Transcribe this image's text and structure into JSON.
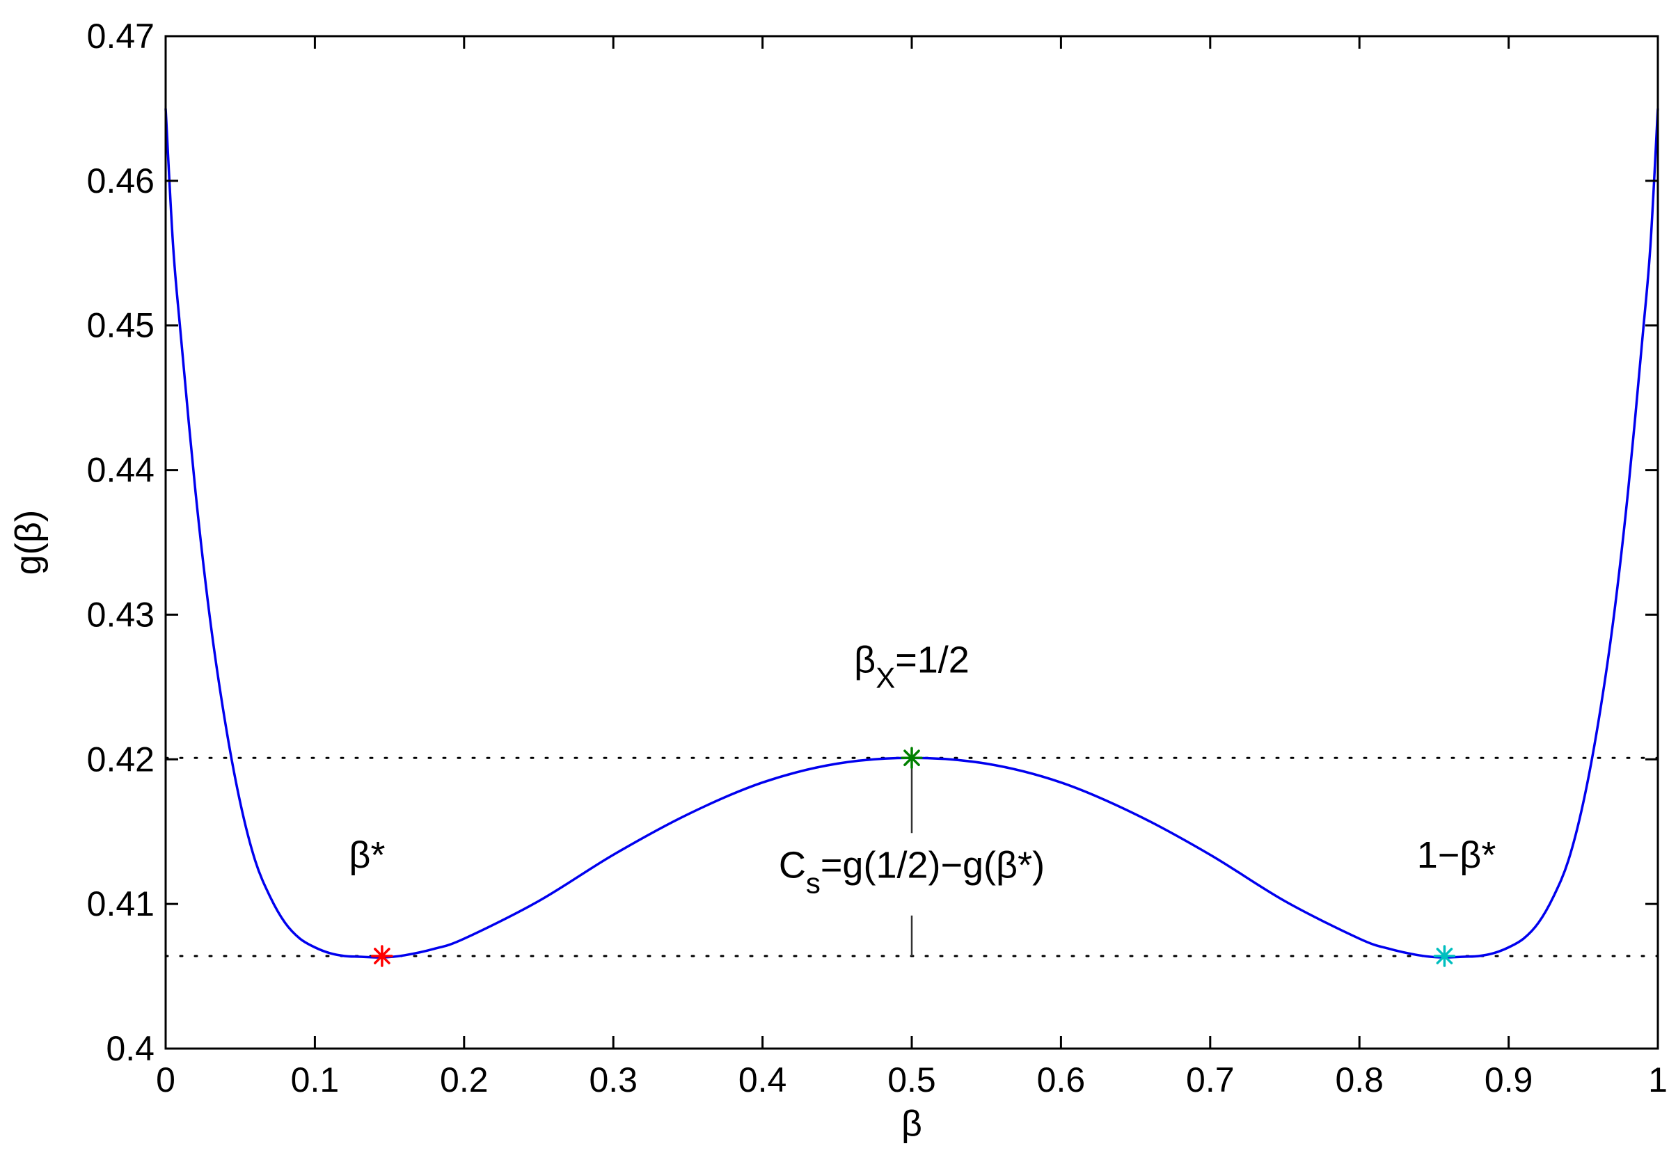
{
  "chart_data": {
    "type": "line",
    "xlabel": "β",
    "ylabel": "g(β)",
    "xlim": [
      0,
      1
    ],
    "ylim": [
      0.4,
      0.47
    ],
    "xticks": [
      0,
      0.1,
      0.2,
      0.3,
      0.4,
      0.5,
      0.6,
      0.7,
      0.8,
      0.9,
      1
    ],
    "xtick_labels": [
      "0",
      "0.1",
      "0.2",
      "0.3",
      "0.4",
      "0.5",
      "0.6",
      "0.7",
      "0.8",
      "0.9",
      "1"
    ],
    "yticks": [
      0.4,
      0.41,
      0.42,
      0.43,
      0.44,
      0.45,
      0.46,
      0.47
    ],
    "ytick_labels": [
      "0.4",
      "0.41",
      "0.42",
      "0.43",
      "0.44",
      "0.45",
      "0.46",
      "0.47"
    ],
    "grid": false,
    "series": [
      {
        "color": "#0000ee",
        "x": [
          0,
          0.005,
          0.01,
          0.02,
          0.03,
          0.04,
          0.05,
          0.06,
          0.07,
          0.08,
          0.09,
          0.1,
          0.11,
          0.12,
          0.13,
          0.145,
          0.16,
          0.18,
          0.2,
          0.25,
          0.3,
          0.35,
          0.4,
          0.45,
          0.5,
          0.55,
          0.6,
          0.65,
          0.7,
          0.75,
          0.8,
          0.82,
          0.84,
          0.855,
          0.87,
          0.88,
          0.89,
          0.9,
          0.91,
          0.92,
          0.93,
          0.94,
          0.95,
          0.96,
          0.97,
          0.98,
          0.99,
          0.995,
          1
        ],
        "y": [
          0.465,
          0.4555,
          0.4495,
          0.4385,
          0.4295,
          0.4225,
          0.417,
          0.413,
          0.4105,
          0.4087,
          0.4076,
          0.407,
          0.4066,
          0.4064,
          0.40635,
          0.4063,
          0.40645,
          0.4069,
          0.4076,
          0.4102,
          0.4134,
          0.4162,
          0.4184,
          0.4197,
          0.4201,
          0.4197,
          0.4184,
          0.4162,
          0.4134,
          0.4102,
          0.4076,
          0.4069,
          0.40645,
          0.4063,
          0.40635,
          0.4064,
          0.4066,
          0.407,
          0.4076,
          0.4087,
          0.4105,
          0.413,
          0.417,
          0.4225,
          0.4295,
          0.4385,
          0.4495,
          0.4555,
          0.465
        ]
      }
    ],
    "reference_lines": [
      {
        "style": "dotted",
        "y": 0.4201
      },
      {
        "style": "dotted",
        "y": 0.4064
      }
    ],
    "markers": [
      {
        "x": 0.145,
        "y": 0.4064,
        "color": "#ff0000",
        "symbol": "asterisk"
      },
      {
        "x": 0.5,
        "y": 0.4201,
        "color": "#008000",
        "symbol": "asterisk"
      },
      {
        "x": 0.857,
        "y": 0.4064,
        "color": "#00bfbf",
        "symbol": "asterisk"
      }
    ],
    "annotations": {
      "beta_star": {
        "label": "β*",
        "x": 0.135,
        "y": 0.4125
      },
      "beta_x": {
        "label": "β",
        "sub": "X",
        "after": "=1/2",
        "x": 0.5,
        "y": 0.426
      },
      "cs": {
        "label": "C",
        "sub": "s",
        "after": "=g(1/2)−g(β*)",
        "x": 0.5,
        "y": 0.4118
      },
      "one_minus": {
        "label": "1−β*",
        "x": 0.865,
        "y": 0.4125
      }
    },
    "gap_bracket": {
      "x": 0.5,
      "y_top": 0.4201,
      "y_bottom": 0.4064,
      "gap": [
        0.4149,
        0.4092
      ]
    }
  }
}
